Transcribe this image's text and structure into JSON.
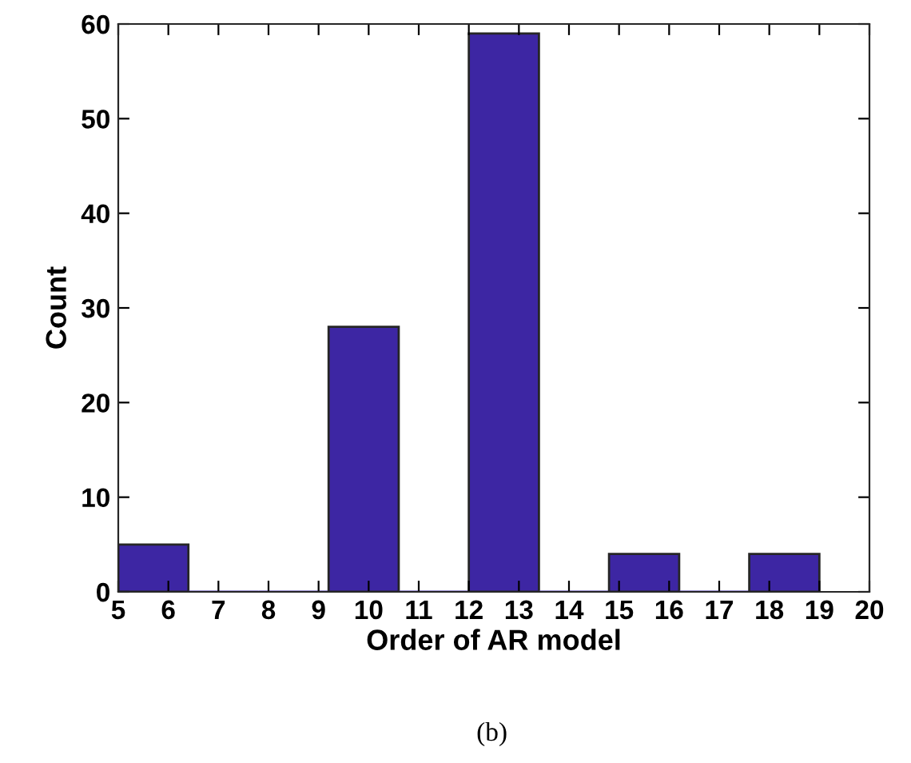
{
  "chart_data": {
    "type": "histogram",
    "xlabel": "Order of AR model",
    "ylabel": "Count",
    "bins": [
      5,
      6.4,
      7.8,
      9.2,
      10.6,
      12,
      13.4,
      14.8,
      16.2,
      17.6,
      19
    ],
    "values": [
      5,
      0,
      0,
      28,
      0,
      59,
      0,
      4,
      0,
      4
    ],
    "color": "#3d26a3",
    "xlim": [
      5,
      20
    ],
    "xticks": [
      5,
      6,
      7,
      8,
      9,
      10,
      11,
      12,
      13,
      14,
      15,
      16,
      17,
      18,
      19,
      20
    ],
    "ylim": [
      0,
      60
    ],
    "yticks": [
      0,
      10,
      20,
      30,
      40,
      50,
      60
    ],
    "grid": false,
    "annotations": [
      "(b)"
    ]
  }
}
